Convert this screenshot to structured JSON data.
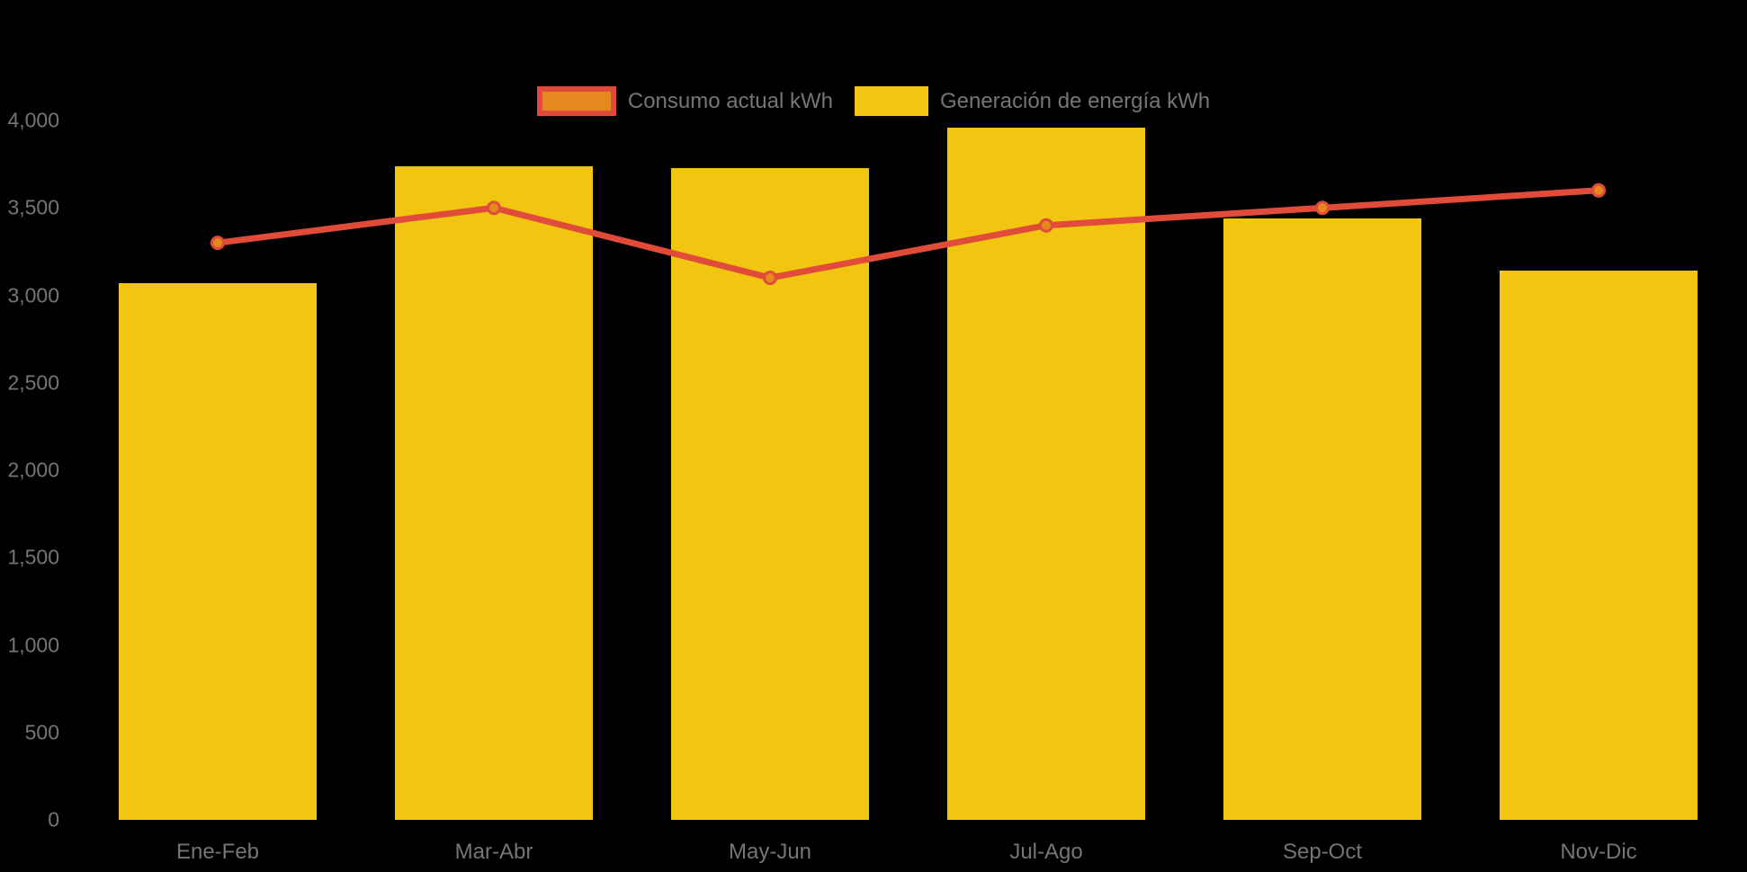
{
  "chart": {
    "background_color": "#000000",
    "text_color": "#757575"
  },
  "legend": {
    "position": "top-center",
    "items": [
      {
        "label": "Consumo actual kWh",
        "swatch_fill": "#e5881e",
        "swatch_border": "#e14b3a"
      },
      {
        "label": "Generación de energía kWh",
        "swatch_fill": "#f2c511",
        "swatch_border": "none"
      }
    ]
  },
  "chart_data": {
    "type": "bar",
    "subtype": "combo-bar-line",
    "title": "",
    "xlabel": "",
    "ylabel": "",
    "categories": [
      "Ene-Feb",
      "Mar-Abr",
      "May-Jun",
      "Jul-Ago",
      "Sep-Oct",
      "Nov-Dic"
    ],
    "series": [
      {
        "name": "Consumo actual kWh",
        "type": "line",
        "color": "#e14b3a",
        "marker_color": "#e5881e",
        "values": [
          3300,
          3500,
          3100,
          3400,
          3500,
          3600
        ]
      },
      {
        "name": "Generación de energía kWh",
        "type": "bar",
        "color": "#f2c511",
        "values": [
          3070,
          3740,
          3730,
          3960,
          3440,
          3140
        ]
      }
    ],
    "ylim": [
      0,
      4000
    ],
    "yticks": [
      {
        "value": 0,
        "label": "0"
      },
      {
        "value": 500,
        "label": "500"
      },
      {
        "value": 1000,
        "label": "1,000"
      },
      {
        "value": 1500,
        "label": "1,500"
      },
      {
        "value": 2000,
        "label": "2,000"
      },
      {
        "value": 2500,
        "label": "2,500"
      },
      {
        "value": 3000,
        "label": "3,000"
      },
      {
        "value": 3500,
        "label": "3,500"
      },
      {
        "value": 4000,
        "label": "4,000"
      }
    ],
    "grid": false,
    "legend_position": "top-center"
  }
}
